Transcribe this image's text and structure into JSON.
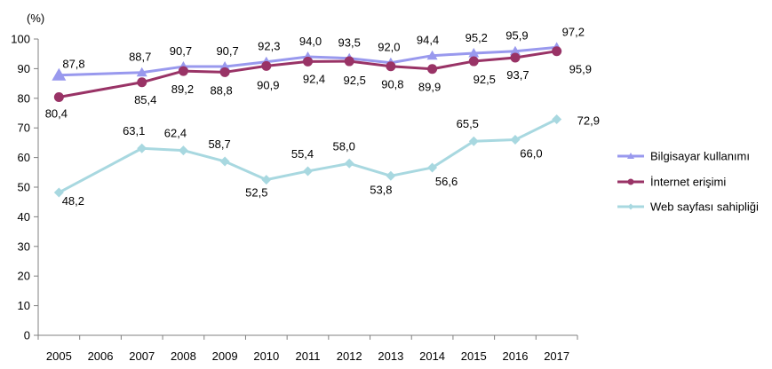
{
  "chart_data": {
    "type": "line",
    "title": "",
    "xlabel": "",
    "ylabel": "(%)",
    "ylim": [
      0,
      100
    ],
    "yticks": [
      0,
      10,
      20,
      30,
      40,
      50,
      60,
      70,
      80,
      90,
      100
    ],
    "grid": false,
    "legend_position": "right",
    "categories": [
      "2005",
      "2006",
      "2007",
      "2008",
      "2009",
      "2010",
      "2011",
      "2012",
      "2013",
      "2014",
      "2015",
      "2016",
      "2017"
    ],
    "series": [
      {
        "name": "Bilgisayar kullanımı",
        "color": "#9999ee",
        "marker": "triangle",
        "values": [
          87.8,
          null,
          88.7,
          90.7,
          90.7,
          92.3,
          94.0,
          93.5,
          92.0,
          94.4,
          95.2,
          95.9,
          97.2
        ],
        "labels": [
          "87,8",
          "",
          "88,7",
          "90,7",
          "90,7",
          "92,3",
          "94,0",
          "93,5",
          "92,0",
          "94,4",
          "95,2",
          "95,9",
          "97,2"
        ]
      },
      {
        "name": "İnternet erişimi",
        "color": "#993366",
        "marker": "circle",
        "values": [
          80.4,
          null,
          85.4,
          89.2,
          88.8,
          90.9,
          92.4,
          92.5,
          90.8,
          89.9,
          92.5,
          93.7,
          95.9
        ],
        "labels": [
          "80,4",
          "",
          "85,4",
          "89,2",
          "88,8",
          "90,9",
          "92,4",
          "92,5",
          "90,8",
          "89,9",
          "92,5",
          "93,7",
          "95,9"
        ]
      },
      {
        "name": "Web sayfası sahipliği",
        "color": "#a8d8e0",
        "marker": "diamond",
        "values": [
          48.2,
          null,
          63.1,
          62.4,
          58.7,
          52.5,
          55.4,
          58.0,
          53.8,
          56.6,
          65.5,
          66.0,
          72.9
        ],
        "labels": [
          "48,2",
          "",
          "63,1",
          "62,4",
          "58,7",
          "52,5",
          "55,4",
          "58,0",
          "53,8",
          "56,6",
          "65,5",
          "66,0",
          "72,9"
        ]
      }
    ]
  }
}
